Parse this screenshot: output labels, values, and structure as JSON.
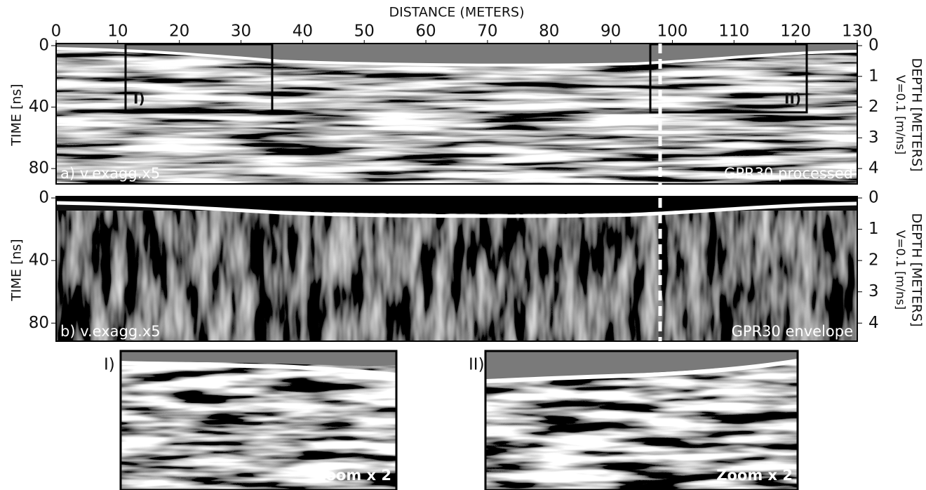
{
  "chart_data": [
    {
      "type": "radargram",
      "xlabel": "DISTANCE (METERS)",
      "xlim": [
        0,
        130
      ],
      "xticks": [
        0,
        10,
        20,
        30,
        40,
        50,
        60,
        70,
        80,
        90,
        100,
        110,
        120,
        130
      ],
      "ylabel": "TIME [ns]",
      "ylim": [
        0,
        90
      ],
      "yticks": [
        0,
        40,
        80
      ],
      "y2label": "DEPTH [METERS]",
      "y2sublabel": "V=0.1 [m/ns]",
      "y2lim": [
        0,
        4.5
      ],
      "y2ticks": [
        0,
        1,
        2,
        3,
        4
      ],
      "annotations": [
        "a) v.exagg.x5",
        "GPR30 processed"
      ],
      "boxes": [
        "I)",
        "II)"
      ]
    },
    {
      "type": "radargram",
      "xlim": [
        0,
        130
      ],
      "ylabel": "TIME [ns]",
      "ylim": [
        0,
        92
      ],
      "yticks": [
        0,
        40,
        80
      ],
      "y2label": "DEPTH [METERS]",
      "y2sublabel": "V=0.1 [m/ns]",
      "y2lim": [
        0,
        4.6
      ],
      "y2ticks": [
        0,
        1,
        2,
        3,
        4
      ],
      "annotations": [
        "b) v.exagg.x5",
        "GPR30 envelope"
      ]
    }
  ],
  "zooms": [
    {
      "label": "I)",
      "note": "Zoom x 2"
    },
    {
      "label": "II)",
      "note": "Zoom x 2"
    }
  ]
}
